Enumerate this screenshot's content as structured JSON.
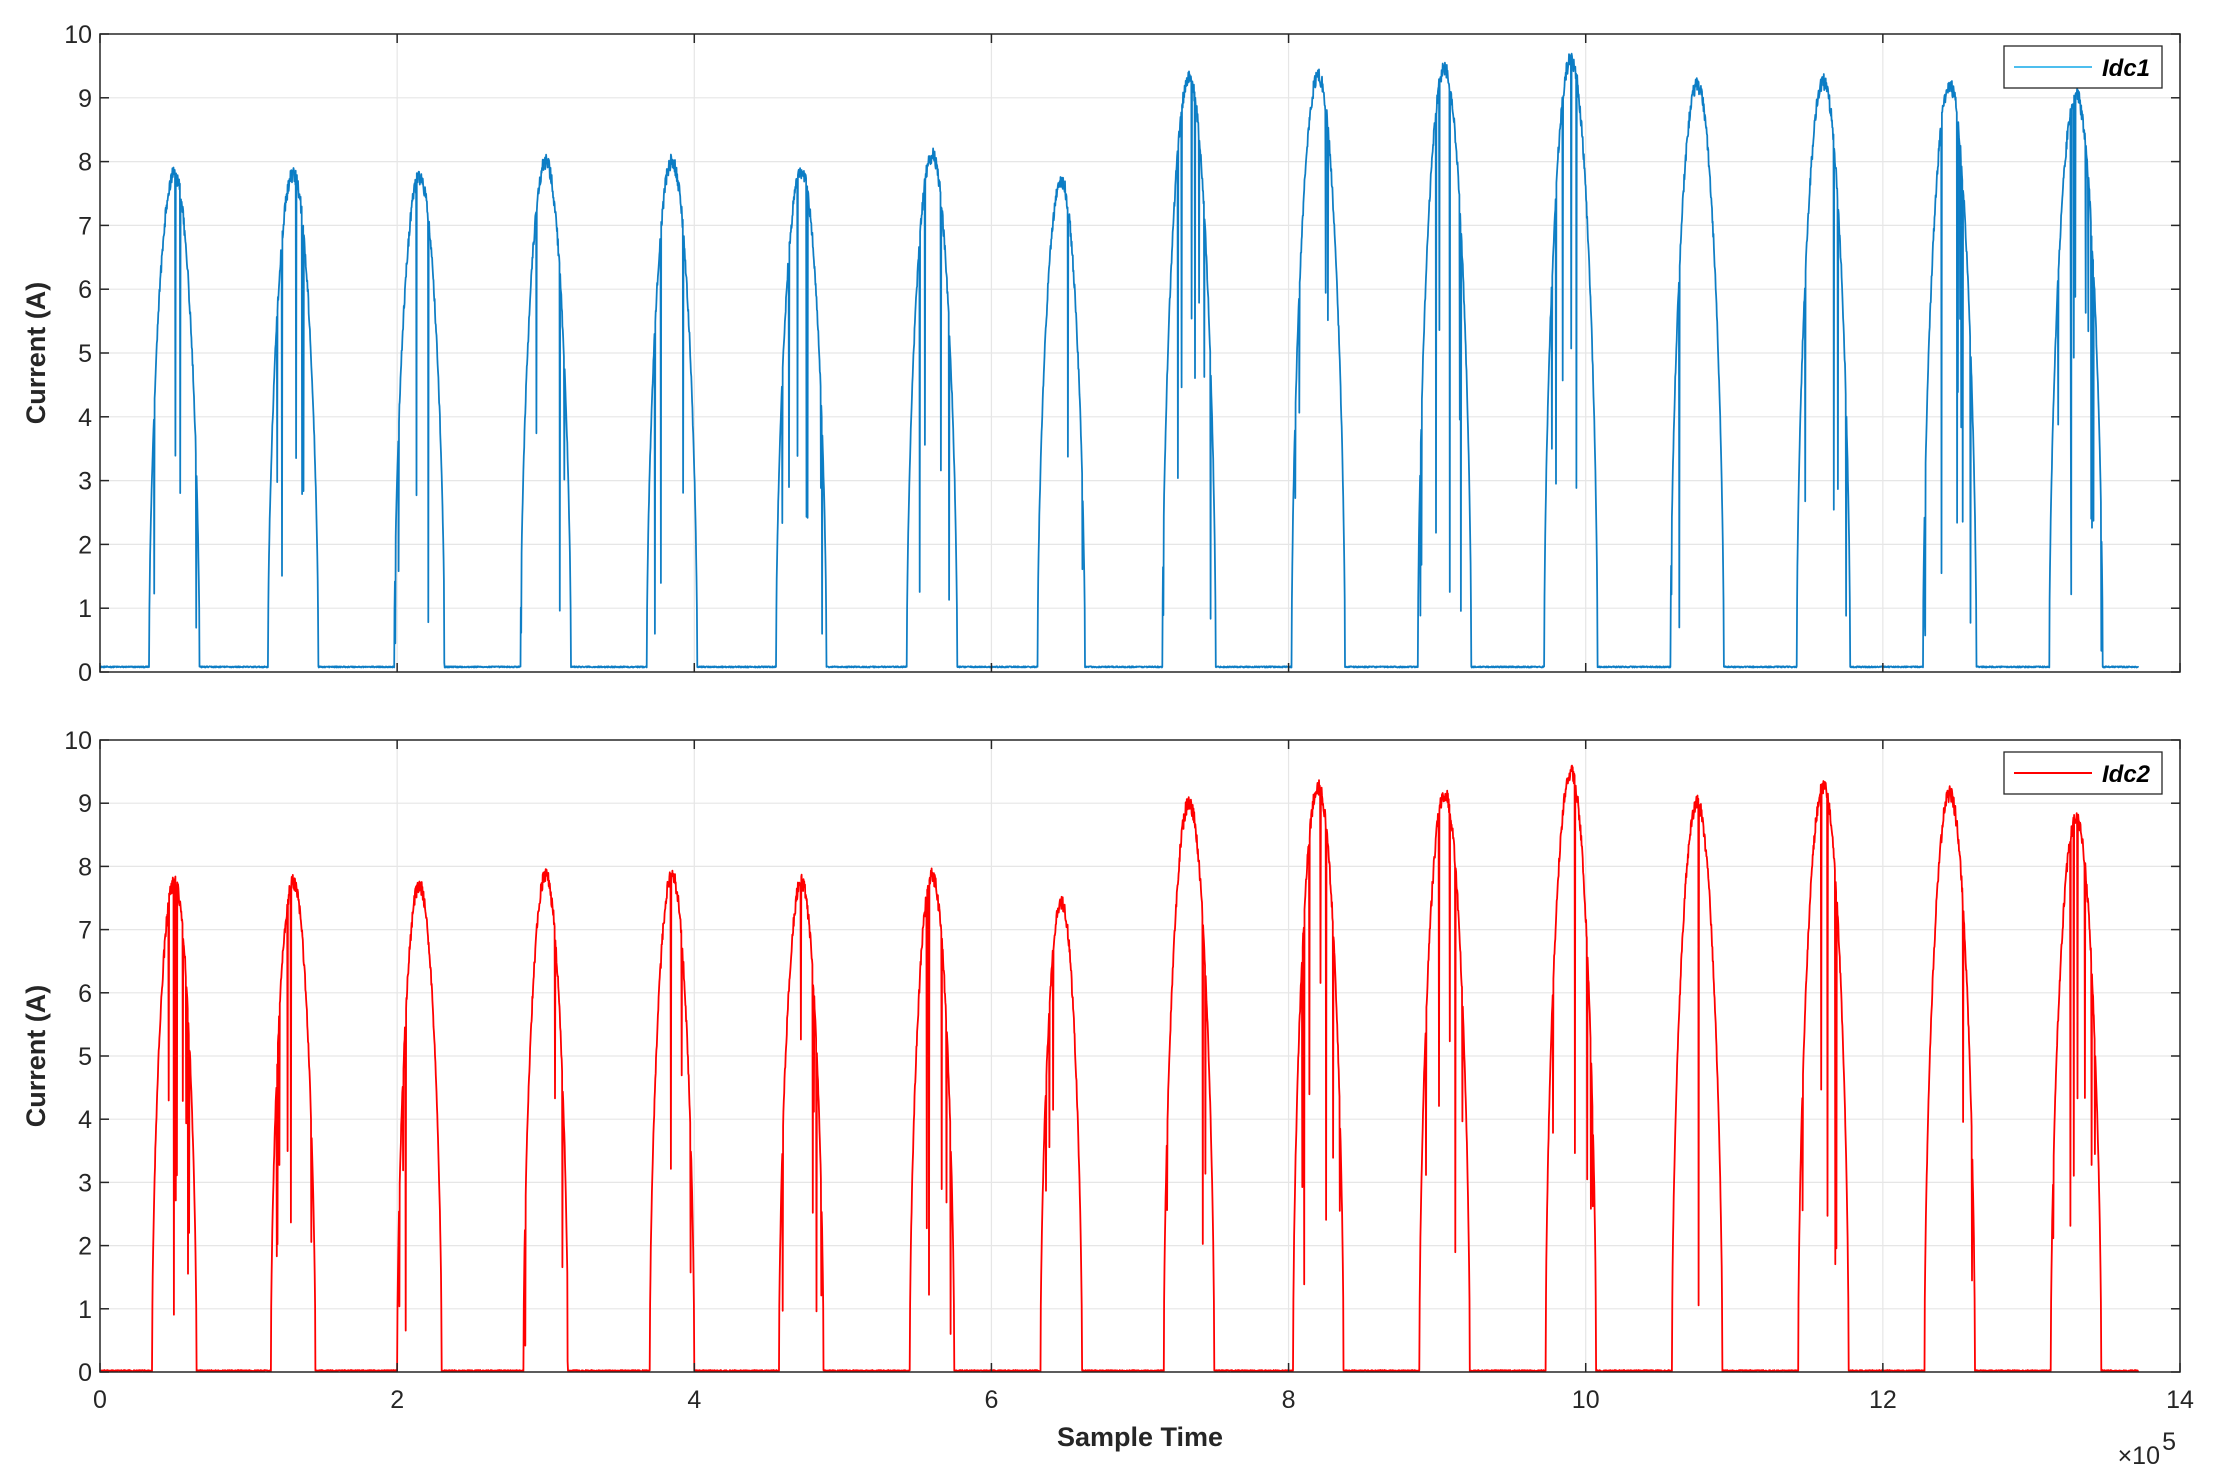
{
  "chart_data": [
    {
      "type": "line",
      "panel": "top",
      "title": "",
      "xlabel": "",
      "ylabel": "Current (A)",
      "xlim": [
        0,
        14
      ],
      "ylim": [
        0,
        10
      ],
      "x_ticks": [
        0,
        2,
        4,
        6,
        8,
        10,
        12,
        14
      ],
      "y_ticks": [
        0,
        1,
        2,
        3,
        4,
        5,
        6,
        7,
        8,
        9,
        10
      ],
      "x_tick_labels_visible": false,
      "grid": true,
      "legend": {
        "position": "top-right",
        "entries": [
          "Idc1"
        ]
      },
      "series": [
        {
          "name": "Idc1",
          "color": "#0072BD",
          "light_color": "#4DBEEE",
          "baseline": 0.08,
          "pulses": [
            {
              "center": 0.5,
              "half_width": 0.17,
              "peak": 7.8
            },
            {
              "center": 1.3,
              "half_width": 0.17,
              "peak": 7.8
            },
            {
              "center": 2.15,
              "half_width": 0.17,
              "peak": 7.75
            },
            {
              "center": 3.0,
              "half_width": 0.17,
              "peak": 8.0
            },
            {
              "center": 3.85,
              "half_width": 0.17,
              "peak": 8.0
            },
            {
              "center": 4.72,
              "half_width": 0.17,
              "peak": 7.85
            },
            {
              "center": 5.6,
              "half_width": 0.17,
              "peak": 8.1
            },
            {
              "center": 6.47,
              "half_width": 0.16,
              "peak": 7.7
            },
            {
              "center": 7.33,
              "half_width": 0.18,
              "peak": 9.3
            },
            {
              "center": 8.2,
              "half_width": 0.18,
              "peak": 9.35
            },
            {
              "center": 9.05,
              "half_width": 0.18,
              "peak": 9.45
            },
            {
              "center": 9.9,
              "half_width": 0.18,
              "peak": 9.6
            },
            {
              "center": 10.75,
              "half_width": 0.18,
              "peak": 9.2
            },
            {
              "center": 11.6,
              "half_width": 0.18,
              "peak": 9.25
            },
            {
              "center": 12.45,
              "half_width": 0.18,
              "peak": 9.2
            },
            {
              "center": 13.3,
              "half_width": 0.18,
              "peak": 9.05
            }
          ],
          "x_end": 13.72
        }
      ]
    },
    {
      "type": "line",
      "panel": "bottom",
      "title": "",
      "xlabel": "Sample Time",
      "ylabel": "Current (A)",
      "xlim": [
        0,
        14
      ],
      "ylim": [
        0,
        10
      ],
      "x_ticks": [
        0,
        2,
        4,
        6,
        8,
        10,
        12,
        14
      ],
      "x_tick_labels": [
        "0",
        "2",
        "4",
        "6",
        "8",
        "10",
        "12",
        "14"
      ],
      "y_ticks": [
        0,
        1,
        2,
        3,
        4,
        5,
        6,
        7,
        8,
        9,
        10
      ],
      "grid": true,
      "x_scale_factor": {
        "base": "×10",
        "exponent": "5"
      },
      "legend": {
        "position": "top-right",
        "entries": [
          "Idc2"
        ]
      },
      "series": [
        {
          "name": "Idc2",
          "color": "#FF0000",
          "baseline": 0.02,
          "pulses": [
            {
              "center": 0.5,
              "half_width": 0.15,
              "peak": 7.75
            },
            {
              "center": 1.3,
              "half_width": 0.15,
              "peak": 7.75
            },
            {
              "center": 2.15,
              "half_width": 0.15,
              "peak": 7.7
            },
            {
              "center": 3.0,
              "half_width": 0.15,
              "peak": 7.85
            },
            {
              "center": 3.85,
              "half_width": 0.15,
              "peak": 7.85
            },
            {
              "center": 4.72,
              "half_width": 0.15,
              "peak": 7.75
            },
            {
              "center": 5.6,
              "half_width": 0.15,
              "peak": 7.85
            },
            {
              "center": 6.47,
              "half_width": 0.14,
              "peak": 7.45
            },
            {
              "center": 7.33,
              "half_width": 0.17,
              "peak": 9.0
            },
            {
              "center": 8.2,
              "half_width": 0.17,
              "peak": 9.25
            },
            {
              "center": 9.05,
              "half_width": 0.17,
              "peak": 9.15
            },
            {
              "center": 9.9,
              "half_width": 0.17,
              "peak": 9.5
            },
            {
              "center": 10.75,
              "half_width": 0.17,
              "peak": 9.0
            },
            {
              "center": 11.6,
              "half_width": 0.17,
              "peak": 9.25
            },
            {
              "center": 12.45,
              "half_width": 0.17,
              "peak": 9.15
            },
            {
              "center": 13.3,
              "half_width": 0.17,
              "peak": 8.75
            }
          ],
          "x_end": 13.72
        }
      ]
    }
  ]
}
